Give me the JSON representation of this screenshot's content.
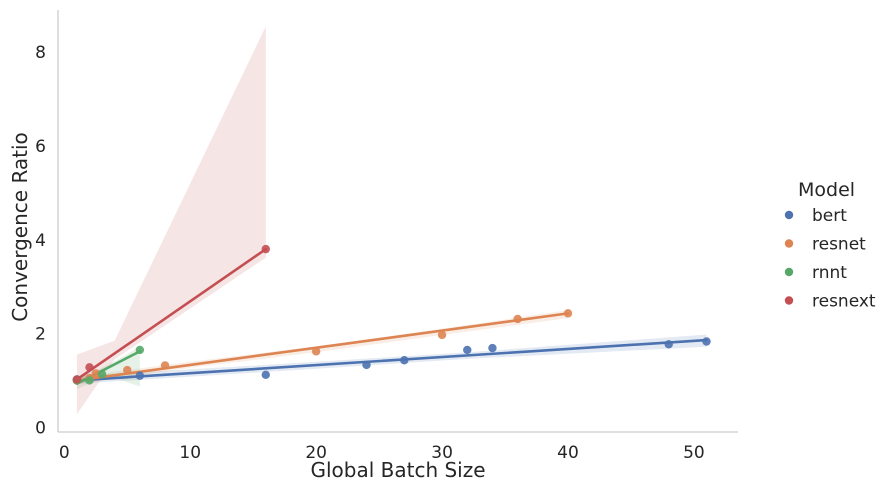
{
  "chart_data": {
    "type": "scatter",
    "title": "",
    "xlabel": "Global Batch Size",
    "ylabel": "Convergence Ratio",
    "xlim": [
      -0.5,
      53.5
    ],
    "ylim": [
      -0.1,
      8.9
    ],
    "xticks": [
      0,
      10,
      20,
      30,
      40,
      50
    ],
    "yticks": [
      0,
      2,
      4,
      6,
      8
    ],
    "xtick_labels": [
      "0",
      "10",
      "20",
      "30",
      "40",
      "50"
    ],
    "ytick_labels": [
      "0",
      "2",
      "4",
      "6",
      "8"
    ],
    "grid": false,
    "legend": {
      "title": "Model",
      "position": "right-outside"
    },
    "regression_lines": true,
    "series": [
      {
        "name": "bert",
        "color": "#4c72b0",
        "points": [
          [
            1,
            1.02
          ],
          [
            6,
            1.1
          ],
          [
            16,
            1.12
          ],
          [
            24,
            1.33
          ],
          [
            27,
            1.43
          ],
          [
            32,
            1.65
          ],
          [
            34,
            1.69
          ],
          [
            48,
            1.77
          ],
          [
            51,
            1.83
          ]
        ],
        "fit": {
          "x": [
            1,
            51
          ],
          "y": [
            1.0,
            1.86
          ]
        },
        "band": {
          "x": [
            1,
            16,
            32,
            51
          ],
          "lower": [
            0.93,
            1.18,
            1.46,
            1.72
          ],
          "upper": [
            1.1,
            1.33,
            1.6,
            1.98
          ]
        }
      },
      {
        "name": "resnet",
        "color": "#dd8452",
        "points": [
          [
            1,
            1.0
          ],
          [
            2,
            1.05
          ],
          [
            2.5,
            1.15
          ],
          [
            5,
            1.22
          ],
          [
            8,
            1.32
          ],
          [
            20,
            1.62
          ],
          [
            30,
            1.97
          ],
          [
            36,
            2.31
          ],
          [
            40,
            2.43
          ]
        ],
        "fit": {
          "x": [
            1,
            40
          ],
          "y": [
            1.0,
            2.43
          ]
        },
        "band": {
          "x": [
            1,
            10,
            20,
            30,
            40
          ],
          "lower": [
            0.92,
            1.27,
            1.6,
            1.97,
            2.33
          ],
          "upper": [
            1.08,
            1.4,
            1.73,
            2.1,
            2.5
          ]
        }
      },
      {
        "name": "rnnt",
        "color": "#55a868",
        "points": [
          [
            1,
            1.0
          ],
          [
            2,
            1.0
          ],
          [
            3,
            1.13
          ],
          [
            6,
            1.65
          ]
        ],
        "fit": {
          "x": [
            1,
            6
          ],
          "y": [
            0.93,
            1.62
          ]
        },
        "band": {
          "x": [
            1,
            3.5,
            6
          ],
          "lower": [
            0.82,
            1.1,
            0.87
          ],
          "upper": [
            1.05,
            1.33,
            1.72
          ]
        }
      },
      {
        "name": "resnext",
        "color": "#c44e52",
        "points": [
          [
            1,
            1.02
          ],
          [
            2,
            1.28
          ],
          [
            16,
            3.8
          ]
        ],
        "fit": {
          "x": [
            1,
            16
          ],
          "y": [
            1.02,
            3.8
          ]
        },
        "band": {
          "x": [
            1,
            4,
            16
          ],
          "lower": [
            0.28,
            1.45,
            3.62
          ],
          "upper": [
            1.55,
            1.85,
            8.55
          ]
        }
      }
    ]
  }
}
